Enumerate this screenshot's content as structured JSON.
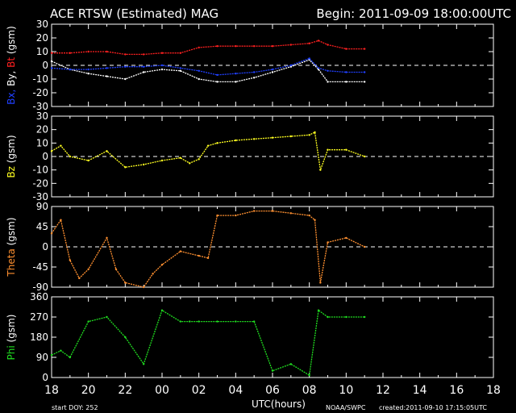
{
  "header": {
    "title": "ACE RTSW (Estimated) MAG",
    "begin": "Begin: 2011-09-09 18:00:00UTC"
  },
  "footer": {
    "start_doy": "start DOY:  252",
    "xlabel": "UTC(hours)",
    "source": "NOAA/SWPC",
    "created": "created:2011-09-10 17:15:05UTC"
  },
  "colors": {
    "bx": "#2040ff",
    "by": "#ffffff",
    "bt": "#ff2020",
    "bz": "#ffff20",
    "theta": "#ff9030",
    "phi": "#20dd20"
  },
  "chart_data": {
    "type": "line",
    "x_unit": "hours since 18:00 UTC",
    "x_tick_labels": [
      "18",
      "20",
      "22",
      "00",
      "02",
      "04",
      "06",
      "08",
      "10",
      "12",
      "14",
      "16",
      "18"
    ],
    "xlim": [
      0,
      24
    ],
    "panels": [
      {
        "ylabel_parts": [
          {
            "text": "Bx,",
            "color": "#2040ff"
          },
          {
            "text": " By,",
            "color": "#ffffff"
          },
          {
            "text": " Bt",
            "color": "#ff2020"
          },
          {
            "text": " (gsm)",
            "color": "#ffffff"
          }
        ],
        "ylim": [
          -30,
          30
        ],
        "yticks": [
          "30",
          "20",
          "10",
          "0",
          "-10",
          "-20",
          "-30"
        ],
        "zero_line": true,
        "series": [
          {
            "key": "bt",
            "color": "#ff2020",
            "x": [
              0,
              1,
              2,
              3,
              4,
              5,
              6,
              7,
              8,
              9,
              10,
              11,
              12,
              13,
              14,
              14.5,
              15,
              16,
              17
            ],
            "y": [
              9,
              9,
              10,
              10,
              8,
              8,
              9,
              9,
              13,
              14,
              14,
              14,
              14,
              15,
              16,
              18,
              15,
              12,
              12
            ]
          },
          {
            "key": "by",
            "color": "#ffffff",
            "x": [
              0,
              1,
              2,
              3,
              4,
              5,
              6,
              7,
              8,
              9,
              10,
              11,
              12,
              13,
              14,
              14.5,
              15,
              16,
              17
            ],
            "y": [
              3,
              -3,
              -6,
              -8,
              -10,
              -5,
              -3,
              -4,
              -10,
              -12,
              -12,
              -9,
              -5,
              -1,
              4,
              -3,
              -12,
              -12,
              -12
            ]
          },
          {
            "key": "bx",
            "color": "#2040ff",
            "x": [
              0,
              1,
              2,
              3,
              4,
              5,
              6,
              7,
              8,
              9,
              10,
              11,
              12,
              13,
              14,
              14.5,
              15,
              16,
              17
            ],
            "y": [
              -2,
              -3,
              -3,
              -2,
              -1,
              -1,
              0,
              -2,
              -4,
              -7,
              -6,
              -5,
              -3,
              0,
              5,
              -2,
              -4,
              -5,
              -5
            ]
          }
        ]
      },
      {
        "ylabel_parts": [
          {
            "text": "Bz",
            "color": "#ffff20"
          },
          {
            "text": "  (gsm)",
            "color": "#ffffff"
          }
        ],
        "ylim": [
          -30,
          30
        ],
        "yticks": [
          "30",
          "20",
          "10",
          "0",
          "-10",
          "-20",
          "-30"
        ],
        "zero_line": true,
        "series": [
          {
            "key": "bz",
            "color": "#ffff20",
            "x": [
              0,
              0.5,
              1,
              2,
              3,
              4,
              5,
              6,
              7,
              7.5,
              8,
              8.5,
              9,
              10,
              11,
              12,
              13,
              14,
              14.3,
              14.6,
              15,
              16,
              17
            ],
            "y": [
              4,
              8,
              0,
              -3,
              4,
              -8,
              -6,
              -3,
              -1,
              -5,
              -2,
              8,
              10,
              12,
              13,
              14,
              15,
              16,
              18,
              -10,
              5,
              5,
              0
            ]
          }
        ]
      },
      {
        "ylabel_parts": [
          {
            "text": "Theta",
            "color": "#ff9030"
          },
          {
            "text": " (gsm)",
            "color": "#ffffff"
          }
        ],
        "ylim": [
          -90,
          90
        ],
        "yticks": [
          "90",
          "45",
          "0",
          "-45",
          "-90"
        ],
        "zero_line": true,
        "series": [
          {
            "key": "theta",
            "color": "#ff9030",
            "x": [
              0,
              0.5,
              1,
              1.5,
              2,
              3,
              3.5,
              4,
              5,
              5.5,
              6,
              7,
              8,
              8.5,
              9,
              10,
              11,
              12,
              13,
              14,
              14.3,
              14.6,
              15,
              16,
              17
            ],
            "y": [
              30,
              60,
              -30,
              -70,
              -50,
              20,
              -50,
              -80,
              -90,
              -60,
              -40,
              -10,
              -20,
              -25,
              70,
              70,
              80,
              80,
              75,
              70,
              60,
              -80,
              10,
              20,
              0
            ]
          }
        ]
      },
      {
        "ylabel_parts": [
          {
            "text": "Phi",
            "color": "#20dd20"
          },
          {
            "text": "  (gsm)",
            "color": "#ffffff"
          }
        ],
        "ylim": [
          0,
          360
        ],
        "yticks": [
          "360",
          "270",
          "180",
          "90",
          "0"
        ],
        "zero_line": false,
        "series": [
          {
            "key": "phi",
            "color": "#20dd20",
            "x": [
              0,
              0.5,
              1,
              2,
              3,
              4,
              5,
              6,
              7,
              7.5,
              8,
              9,
              10,
              11,
              12,
              13,
              14,
              14.5,
              15,
              16,
              17
            ],
            "y": [
              100,
              120,
              90,
              250,
              270,
              180,
              60,
              300,
              250,
              250,
              250,
              250,
              250,
              250,
              30,
              60,
              10,
              300,
              270,
              270,
              270
            ]
          }
        ]
      }
    ]
  }
}
